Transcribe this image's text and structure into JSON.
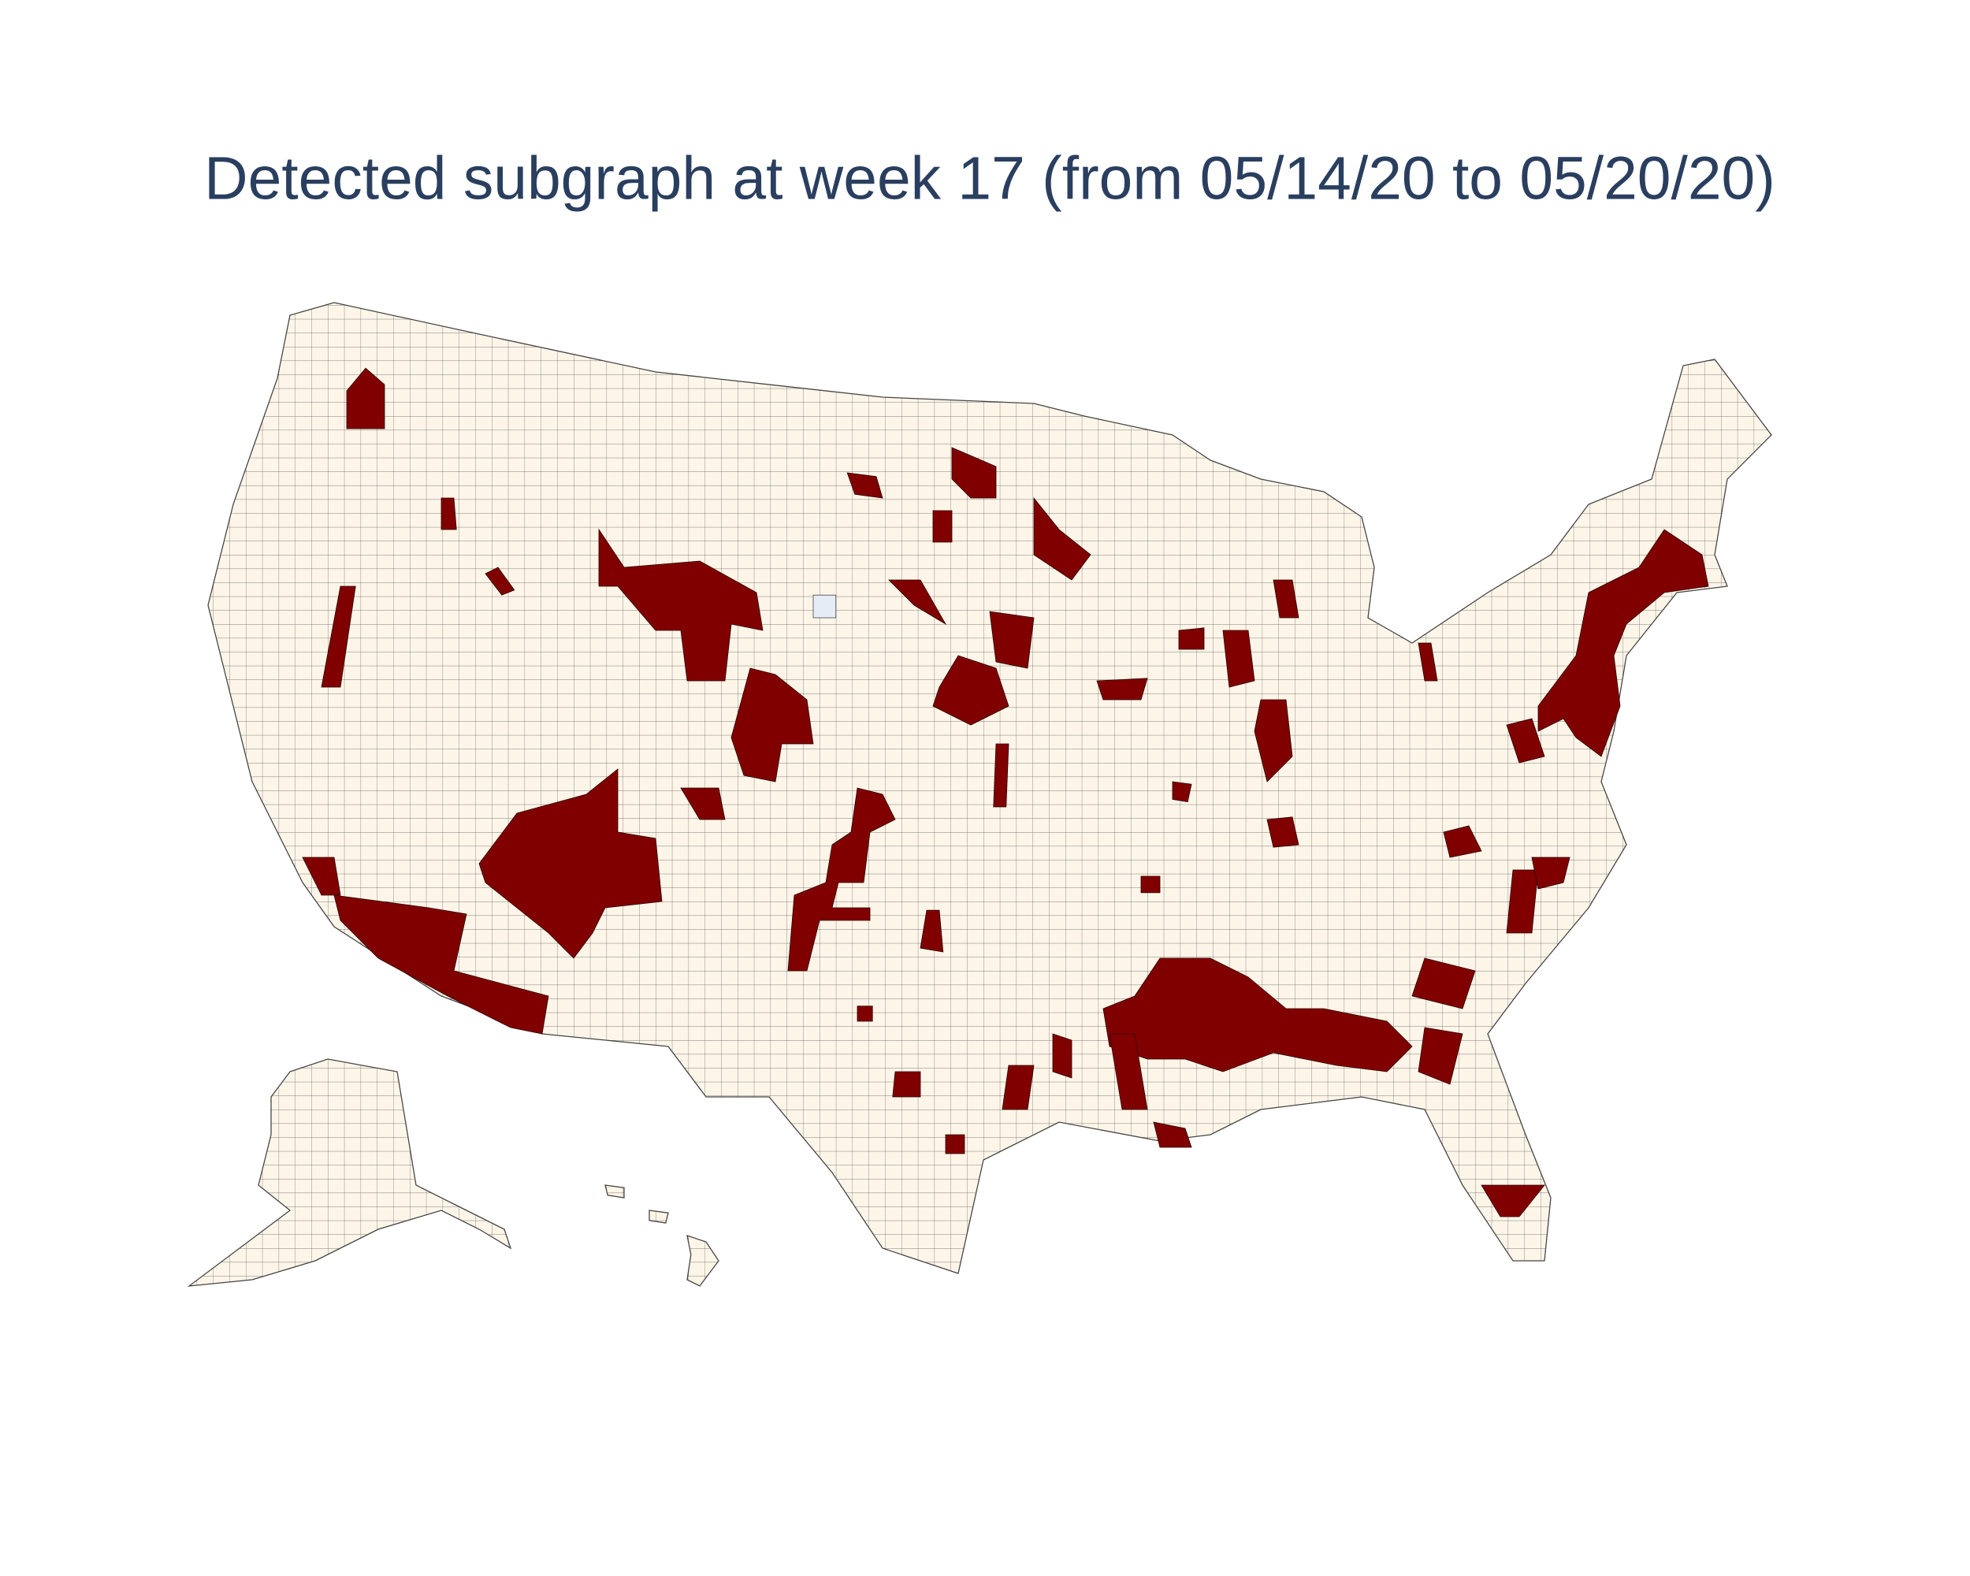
{
  "title": "Detected subgraph at week 17 (from 05/14/20 to 05/20/20)"
}
